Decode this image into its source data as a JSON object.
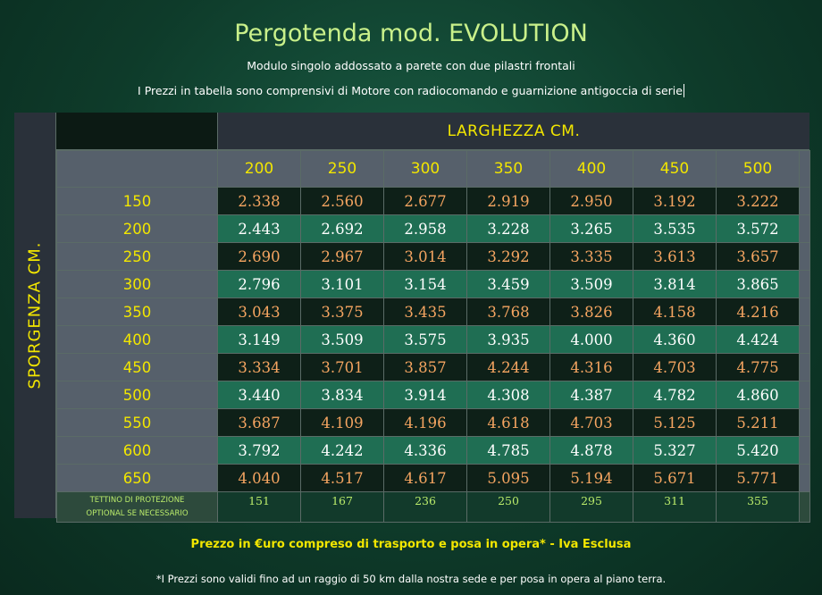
{
  "header": {
    "title": "Pergotenda mod. EVOLUTION",
    "subtitle": "Modulo singolo addossato a parete con due pilastri frontali",
    "note": "I Prezzi in tabella sono comprensivi di Motore con radiocomando e guarnizione antigoccia di serie"
  },
  "table": {
    "width_label": "LARGHEZZA CM.",
    "depth_label": "SPORGENZA  CM.",
    "widths": [
      "200",
      "250",
      "300",
      "350",
      "400",
      "450",
      "500"
    ],
    "rows": [
      {
        "depth": "150",
        "prices": [
          "2.338",
          "2.560",
          "2.677",
          "2.919",
          "2.950",
          "3.192",
          "3.222"
        ]
      },
      {
        "depth": "200",
        "prices": [
          "2.443",
          "2.692",
          "2.958",
          "3.228",
          "3.265",
          "3.535",
          "3.572"
        ]
      },
      {
        "depth": "250",
        "prices": [
          "2.690",
          "2.967",
          "3.014",
          "3.292",
          "3.335",
          "3.613",
          "3.657"
        ]
      },
      {
        "depth": "300",
        "prices": [
          "2.796",
          "3.101",
          "3.154",
          "3.459",
          "3.509",
          "3.814",
          "3.865"
        ]
      },
      {
        "depth": "350",
        "prices": [
          "3.043",
          "3.375",
          "3.435",
          "3.768",
          "3.826",
          "4.158",
          "4.216"
        ]
      },
      {
        "depth": "400",
        "prices": [
          "3.149",
          "3.509",
          "3.575",
          "3.935",
          "4.000",
          "4.360",
          "4.424"
        ]
      },
      {
        "depth": "450",
        "prices": [
          "3.334",
          "3.701",
          "3.857",
          "4.244",
          "4.316",
          "4.703",
          "4.775"
        ]
      },
      {
        "depth": "500",
        "prices": [
          "3.440",
          "3.834",
          "3.914",
          "4.308",
          "4.387",
          "4.782",
          "4.860"
        ]
      },
      {
        "depth": "550",
        "prices": [
          "3.687",
          "4.109",
          "4.196",
          "4.618",
          "4.703",
          "5.125",
          "5.211"
        ]
      },
      {
        "depth": "600",
        "prices": [
          "3.792",
          "4.242",
          "4.336",
          "4.785",
          "4.878",
          "5.327",
          "5.420"
        ]
      },
      {
        "depth": "650",
        "prices": [
          "4.040",
          "4.517",
          "4.617",
          "5.095",
          "5.194",
          "5.671",
          "5.771"
        ]
      }
    ],
    "extra": {
      "label_line1": "TETTINO DI PROTEZIONE",
      "label_line2": "OPTIONAL SE NECESSARIO",
      "prices": [
        "151",
        "167",
        "236",
        "250",
        "295",
        "311",
        "355"
      ]
    }
  },
  "footer": {
    "price_note": "Prezzo in €uro compreso di trasporto e posa in opera*   -    Iva Esclusa",
    "footnote": "*I Prezzi sono validi fino ad un raggio di 50 km dalla nostra sede e per posa in opera al piano terra."
  },
  "colors": {
    "accent_yellow": "#f2e600",
    "title_green": "#c9f08a",
    "price_orange": "#f5a561",
    "row_dark": "#0e2018",
    "row_light": "#1f6e53"
  }
}
